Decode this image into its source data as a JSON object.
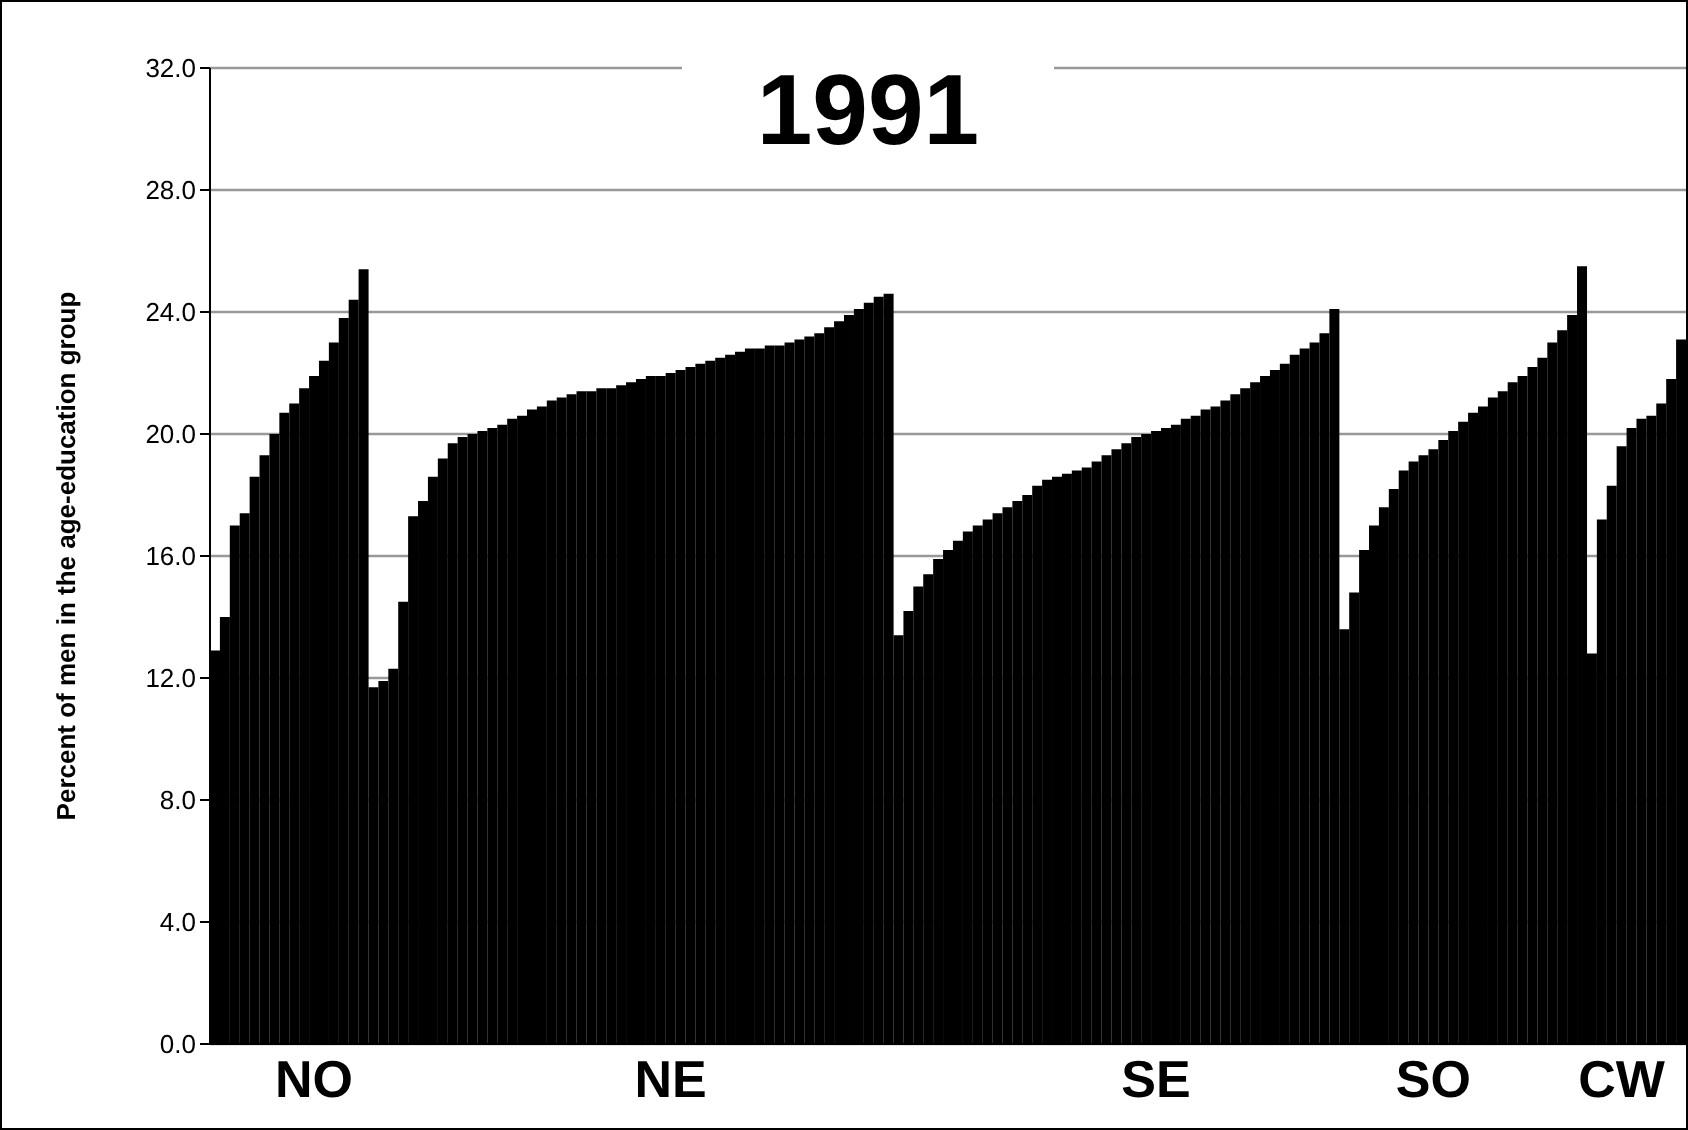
{
  "chart_data": {
    "type": "bar",
    "title": "1991",
    "ylabel": "Percent of men in the age-education group",
    "categories": [
      null,
      null,
      null,
      null,
      null,
      null,
      null,
      null,
      null,
      null,
      "NO",
      null,
      null,
      null,
      null,
      null,
      null,
      null,
      null,
      null,
      null,
      null,
      null,
      null,
      null,
      null,
      null,
      null,
      null,
      null,
      null,
      null,
      null,
      null,
      null,
      null,
      null,
      null,
      null,
      null,
      null,
      null,
      null,
      null,
      null,
      null,
      "NE",
      null,
      null,
      null,
      null,
      null,
      null,
      null,
      null,
      null,
      null,
      null,
      null,
      null,
      null,
      null,
      null,
      null,
      null,
      null,
      null,
      null,
      null,
      null,
      null,
      null,
      null,
      null,
      null,
      null,
      null,
      null,
      null,
      null,
      null,
      null,
      null,
      null,
      null,
      null,
      null,
      null,
      null,
      null,
      null,
      null,
      null,
      null,
      null,
      "SE",
      null,
      null,
      null,
      null,
      null,
      null,
      null,
      null,
      null,
      null,
      null,
      null,
      null,
      null,
      null,
      null,
      null,
      null,
      null,
      null,
      null,
      null,
      null,
      null,
      null,
      null,
      null,
      "SO",
      null,
      null,
      null,
      null,
      null,
      null,
      null,
      null,
      null,
      null,
      null,
      null,
      null,
      null,
      null,
      null,
      null,
      null,
      "CW",
      null,
      null,
      null,
      null,
      null,
      null
    ],
    "values": [
      12.9,
      14.0,
      17.0,
      17.4,
      18.6,
      19.3,
      20.0,
      20.7,
      21.0,
      21.5,
      21.9,
      22.4,
      23.0,
      23.8,
      24.4,
      25.4,
      11.7,
      11.9,
      12.3,
      14.5,
      17.3,
      17.8,
      18.6,
      19.2,
      19.7,
      19.9,
      20.0,
      20.1,
      20.2,
      20.3,
      20.5,
      20.6,
      20.8,
      20.9,
      21.1,
      21.2,
      21.3,
      21.4,
      21.4,
      21.5,
      21.5,
      21.6,
      21.7,
      21.8,
      21.9,
      21.9,
      22.0,
      22.1,
      22.2,
      22.3,
      22.4,
      22.5,
      22.6,
      22.7,
      22.8,
      22.8,
      22.9,
      22.9,
      23.0,
      23.1,
      23.2,
      23.3,
      23.5,
      23.7,
      23.9,
      24.1,
      24.3,
      24.5,
      24.6,
      13.4,
      14.2,
      15.0,
      15.4,
      15.9,
      16.2,
      16.5,
      16.8,
      17.0,
      17.2,
      17.4,
      17.6,
      17.8,
      18.0,
      18.3,
      18.5,
      18.6,
      18.7,
      18.8,
      18.9,
      19.1,
      19.3,
      19.5,
      19.7,
      19.9,
      20.0,
      20.1,
      20.2,
      20.3,
      20.5,
      20.6,
      20.8,
      20.9,
      21.1,
      21.3,
      21.5,
      21.7,
      21.9,
      22.1,
      22.3,
      22.6,
      22.8,
      23.0,
      23.3,
      24.1,
      13.6,
      14.8,
      16.2,
      17.0,
      17.6,
      18.2,
      18.8,
      19.1,
      19.3,
      19.5,
      19.8,
      20.1,
      20.4,
      20.7,
      20.9,
      21.2,
      21.4,
      21.7,
      21.9,
      22.2,
      22.5,
      23.0,
      23.4,
      23.9,
      25.5,
      12.8,
      17.2,
      18.3,
      19.6,
      20.2,
      20.5,
      20.6,
      21.0,
      21.8,
      23.1
    ],
    "color": "#000000",
    "ylim": [
      0,
      32
    ],
    "yticks": [
      {
        "value": 0,
        "label": "0.0"
      },
      {
        "value": 4,
        "label": "4.0"
      },
      {
        "value": 8,
        "label": "8.0"
      },
      {
        "value": 12,
        "label": "12.0"
      },
      {
        "value": 16,
        "label": "16.0"
      },
      {
        "value": 20,
        "label": "20.0"
      },
      {
        "value": 24,
        "label": "24.0"
      },
      {
        "value": 28,
        "label": "28.0"
      },
      {
        "value": 32,
        "label": "32.0"
      }
    ],
    "grid": "y"
  }
}
